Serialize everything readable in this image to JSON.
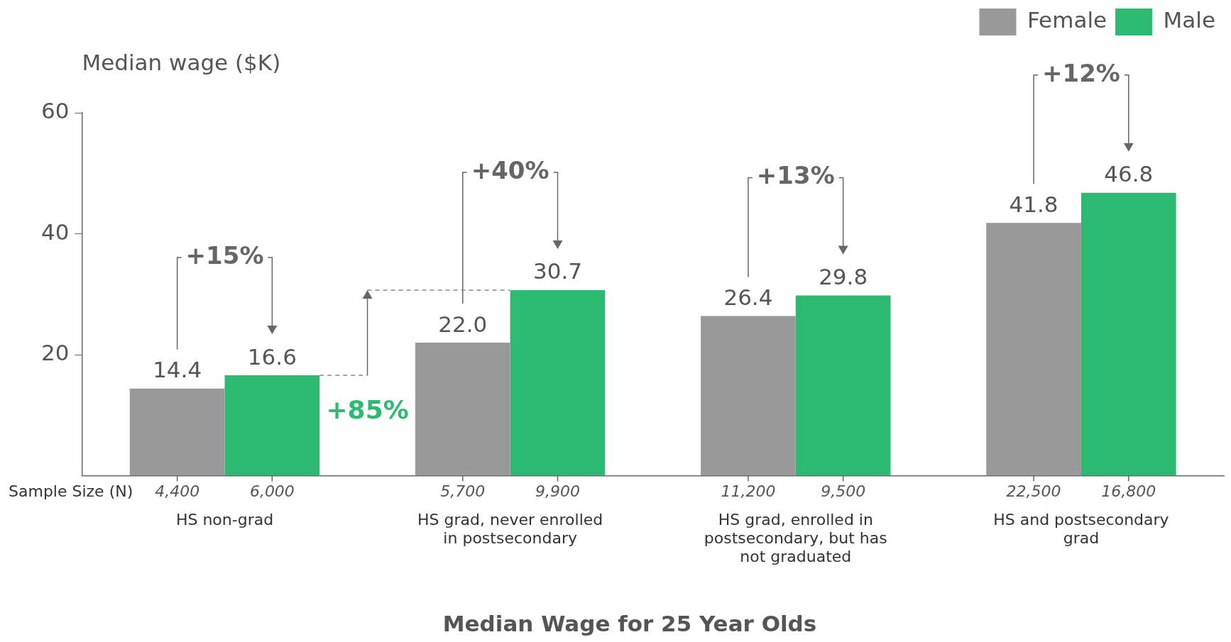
{
  "chart_data": {
    "type": "bar",
    "title": "Median Wage for 25 Year Olds",
    "ylabel": "Median wage ($K)",
    "categories": [
      "HS non-grad",
      "HS grad, never enrolled in postsecondary",
      "HS grad, enrolled in postsecondary, but has not graduated",
      "HS and postsecondary grad"
    ],
    "series": [
      {
        "name": "Female",
        "color": "#999999",
        "values": [
          14.4,
          22.0,
          26.4,
          41.8
        ],
        "value_labels": [
          "14.4",
          "22.0",
          "26.4",
          "41.8"
        ]
      },
      {
        "name": "Male",
        "color": "#2bba6f",
        "values": [
          16.6,
          30.7,
          29.8,
          46.8
        ],
        "value_labels": [
          "16.6",
          "30.7",
          "29.8",
          "46.8"
        ]
      }
    ],
    "ylim": [
      0,
      60
    ],
    "yticks": [
      20,
      40,
      60
    ],
    "grid": false,
    "legend": "top right",
    "annotations": [
      "Sample Size (N)",
      "4,400",
      "6,000",
      "5,700",
      "9,900",
      "11,200",
      "9,500",
      "22,500",
      "16,800",
      "+15%",
      "+40%",
      "+13%",
      "+12%",
      "+85%"
    ]
  }
}
